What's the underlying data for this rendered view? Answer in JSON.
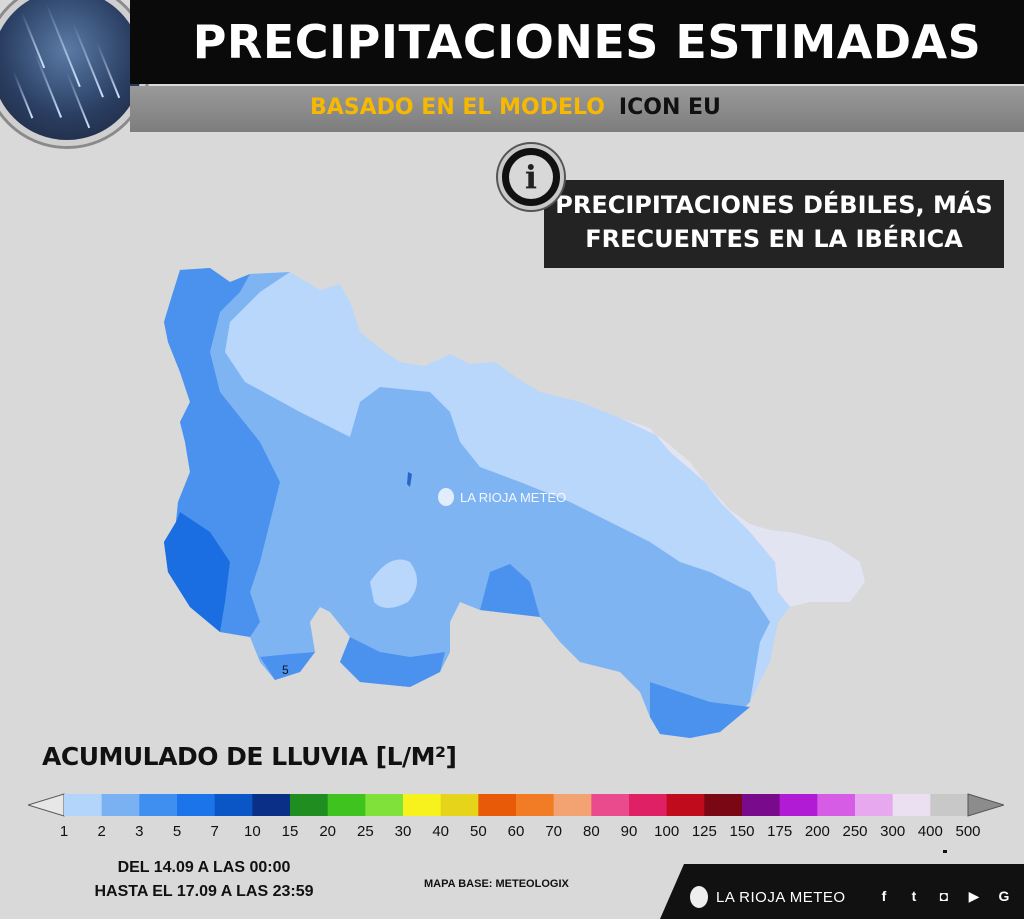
{
  "header": {
    "title": "PRECIPITACIONES ESTIMADAS",
    "subtitle_prefix": "BASADO EN EL MODELO",
    "subtitle_model": "ICON EU"
  },
  "note": {
    "icon": "info-icon",
    "line1": "PRECIPITACIONES DÉBILES, MÁS",
    "line2": "FRECUENTES EN LA IBÉRICA"
  },
  "map": {
    "watermark": "LA RIOJA METEO",
    "contour_label": "5"
  },
  "legend": {
    "title": "ACUMULADO DE LLUVIA [L/M²]",
    "values": [
      "1",
      "2",
      "3",
      "5",
      "7",
      "10",
      "15",
      "20",
      "25",
      "30",
      "40",
      "50",
      "60",
      "70",
      "80",
      "90",
      "100",
      "125",
      "150",
      "175",
      "200",
      "250",
      "300",
      "400",
      "500"
    ],
    "colors": [
      "#b3d4fb",
      "#7ab1f2",
      "#3f8ff0",
      "#1c74ea",
      "#0b56c6",
      "#0a2f86",
      "#1f8d1f",
      "#3fc41f",
      "#7fe13a",
      "#f7f21e",
      "#e5d41a",
      "#e85a07",
      "#f27b26",
      "#f3a272",
      "#e94b8d",
      "#e02065",
      "#bf0b1c",
      "#7a0814",
      "#7a0a8c",
      "#b21bd6",
      "#d65ce6",
      "#e7a8ef",
      "#ebe0f2",
      "#c8c8c8"
    ]
  },
  "dates": {
    "from": "DEL 14.09 A LAS 00:00",
    "to": "HASTA EL 17.09 A LAS 23:59"
  },
  "credit": "MAPA BASE: METEOLOGIX",
  "footer": {
    "brand": "LA RIOJA METEO",
    "social": [
      "f",
      "t",
      "ig",
      "yt",
      "G"
    ]
  }
}
